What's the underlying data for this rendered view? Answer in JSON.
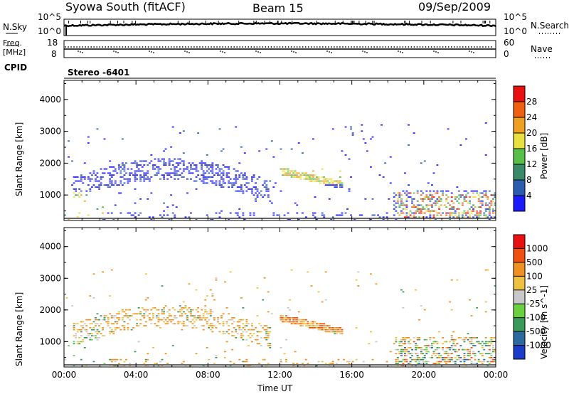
{
  "header": {
    "title": "Syowa South (fitACF)",
    "beam": "Beam 15",
    "date": "09/Sep/2009"
  },
  "meta_labels": {
    "nsky": "N.Sky",
    "nsky_lo": "10^0",
    "nsky_hi": "10^5",
    "freq": "Freq.",
    "freq_unit": "[MHz]",
    "freq_lo": "8",
    "freq_hi": "18",
    "cpid": "CPID",
    "nsearch": "N.Search",
    "nsearch_lo": "10^0",
    "nsearch_hi": "10^5",
    "nave": "Nave",
    "nave_lo": "0",
    "nave_hi": "60",
    "stereo": "Stereo -6401"
  },
  "chart_data": [
    {
      "type": "heatmap",
      "panel": "power",
      "ylabel": "Slant Range [km]",
      "xlabel": "",
      "yticks": [
        "1000",
        "2000",
        "3000",
        "4000"
      ],
      "xticks": [
        "00:00",
        "04:00",
        "08:00",
        "12:00",
        "16:00",
        "20:00",
        "00:00"
      ],
      "ylim": [
        200,
        4600
      ],
      "xlim_hours": [
        0,
        24
      ],
      "colorbar": {
        "label": "Power [dB]",
        "ticks": [
          "4",
          "8",
          "12",
          "16",
          "20",
          "24",
          "28"
        ],
        "colors": [
          "#1a1aff",
          "#2a5cb0",
          "#3a8a6a",
          "#58c048",
          "#e8e040",
          "#f0a020",
          "#f06010",
          "#e81010"
        ]
      },
      "features": [
        {
          "name": "diffuse scatter band",
          "t_start": 0.5,
          "t_end": 11.5,
          "r_start": 900,
          "r_end": 2200
        },
        {
          "name": "strong echo band",
          "t_start": 12.0,
          "t_end": 15.5,
          "r_start": 1300,
          "r_end": 1800
        },
        {
          "name": "evening echoes",
          "t_start": 18.5,
          "t_end": 24.0,
          "r_start": 300,
          "r_end": 1200
        }
      ]
    },
    {
      "type": "heatmap",
      "panel": "velocity",
      "ylabel": "Slant Range [km]",
      "xlabel": "Time UT",
      "yticks": [
        "1000",
        "2000",
        "3000",
        "4000"
      ],
      "xticks": [
        "00:00",
        "04:00",
        "08:00",
        "12:00",
        "16:00",
        "20:00",
        "00:00"
      ],
      "ylim": [
        200,
        4600
      ],
      "xlim_hours": [
        0,
        24
      ],
      "colorbar": {
        "label": "Velocity [m s^-1]",
        "ticks": [
          "1000",
          "500",
          "100",
          "25",
          "-25",
          "-100",
          "-500",
          "-1000"
        ],
        "colors": [
          "#1a3cc8",
          "#2a6aa0",
          "#3a9a5a",
          "#6ad040",
          "#c8c8c8",
          "#f0c040",
          "#f09020",
          "#f05010",
          "#e81010"
        ]
      }
    }
  ]
}
